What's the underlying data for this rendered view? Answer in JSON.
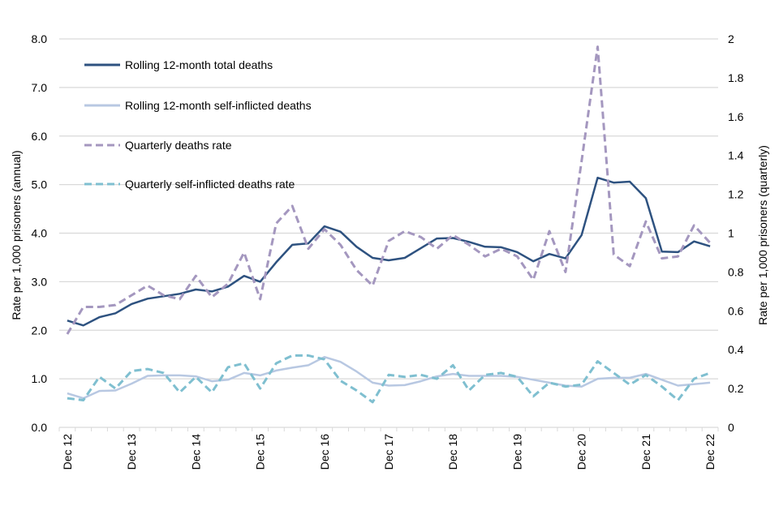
{
  "chart_data": {
    "type": "line",
    "title": "",
    "xlabel": "",
    "ylabel": "Rate per 1,000 prisoners (annual)",
    "y2label": "Rate per 1,000 prisoners (quarterly)",
    "ylim": [
      0,
      8
    ],
    "y2lim": [
      0,
      2
    ],
    "yticks": [
      "0.0",
      "1.0",
      "2.0",
      "3.0",
      "4.0",
      "5.0",
      "6.0",
      "7.0",
      "8.0"
    ],
    "y2ticks": [
      "0",
      "0.2",
      "0.4",
      "0.6",
      "0.8",
      "1",
      "1.2",
      "1.4",
      "1.6",
      "1.8",
      "2"
    ],
    "grid": true,
    "legend_position": "top-left",
    "x_tick_labels": [
      "Dec 12",
      "Dec 13",
      "Dec 14",
      "Dec 15",
      "Dec 16",
      "Dec 17",
      "Dec 18",
      "Dec 19",
      "Dec 20",
      "Dec 21",
      "Dec 22"
    ],
    "x": [
      "Dec 12",
      "Mar 13",
      "Jun 13",
      "Sep 13",
      "Dec 13",
      "Mar 14",
      "Jun 14",
      "Sep 14",
      "Dec 14",
      "Mar 15",
      "Jun 15",
      "Sep 15",
      "Dec 15",
      "Mar 16",
      "Jun 16",
      "Sep 16",
      "Dec 16",
      "Mar 17",
      "Jun 17",
      "Sep 17",
      "Dec 17",
      "Mar 18",
      "Jun 18",
      "Sep 18",
      "Dec 18",
      "Mar 19",
      "Jun 19",
      "Sep 19",
      "Dec 19",
      "Mar 20",
      "Jun 20",
      "Sep 20",
      "Dec 20",
      "Mar 21",
      "Jun 21",
      "Sep 21",
      "Dec 21",
      "Mar 22",
      "Jun 22",
      "Sep 22",
      "Dec 22"
    ],
    "series": [
      {
        "name": "Rolling 12-month total deaths",
        "axis": "left",
        "style": "solid",
        "color": "#2e5280",
        "values": [
          2.2,
          2.1,
          2.27,
          2.35,
          2.54,
          2.65,
          2.7,
          2.75,
          2.84,
          2.8,
          2.9,
          3.12,
          3.0,
          3.4,
          3.76,
          3.79,
          4.14,
          4.03,
          3.72,
          3.49,
          3.44,
          3.49,
          3.69,
          3.89,
          3.9,
          3.82,
          3.72,
          3.71,
          3.61,
          3.42,
          3.57,
          3.48,
          3.96,
          5.14,
          5.04,
          5.06,
          4.72,
          3.62,
          3.61,
          3.83,
          3.73
        ]
      },
      {
        "name": "Rolling 12-month self-inflicted deaths",
        "axis": "left",
        "style": "solid",
        "color": "#b8c8e2",
        "values": [
          0.7,
          0.6,
          0.75,
          0.76,
          0.9,
          1.06,
          1.07,
          1.07,
          1.05,
          0.95,
          0.98,
          1.12,
          1.07,
          1.17,
          1.23,
          1.28,
          1.45,
          1.35,
          1.15,
          0.92,
          0.86,
          0.87,
          0.95,
          1.05,
          1.1,
          1.06,
          1.06,
          1.06,
          1.04,
          0.98,
          0.92,
          0.86,
          0.84,
          1.0,
          1.02,
          1.02,
          1.1,
          0.98,
          0.86,
          0.89,
          0.92
        ]
      },
      {
        "name": "Quarterly deaths rate",
        "axis": "right",
        "style": "dashed",
        "color": "#a497bf",
        "values": [
          0.48,
          0.62,
          0.62,
          0.63,
          0.68,
          0.73,
          0.68,
          0.66,
          0.78,
          0.67,
          0.74,
          0.9,
          0.66,
          1.05,
          1.14,
          0.92,
          1.02,
          0.94,
          0.81,
          0.73,
          0.96,
          1.01,
          0.98,
          0.92,
          0.99,
          0.94,
          0.88,
          0.92,
          0.88,
          0.76,
          1.01,
          0.8,
          1.37,
          1.96,
          0.89,
          0.83,
          1.06,
          0.87,
          0.88,
          1.04,
          0.95
        ]
      },
      {
        "name": "Quarterly self-inflicted deaths rate",
        "axis": "right",
        "style": "dashed",
        "color": "#7fbfd0",
        "values": [
          0.15,
          0.14,
          0.26,
          0.2,
          0.29,
          0.3,
          0.28,
          0.18,
          0.26,
          0.18,
          0.31,
          0.33,
          0.2,
          0.33,
          0.37,
          0.37,
          0.35,
          0.24,
          0.19,
          0.13,
          0.27,
          0.26,
          0.27,
          0.25,
          0.32,
          0.19,
          0.27,
          0.28,
          0.26,
          0.16,
          0.23,
          0.21,
          0.22,
          0.34,
          0.28,
          0.22,
          0.27,
          0.21,
          0.14,
          0.25,
          0.28
        ]
      }
    ]
  }
}
